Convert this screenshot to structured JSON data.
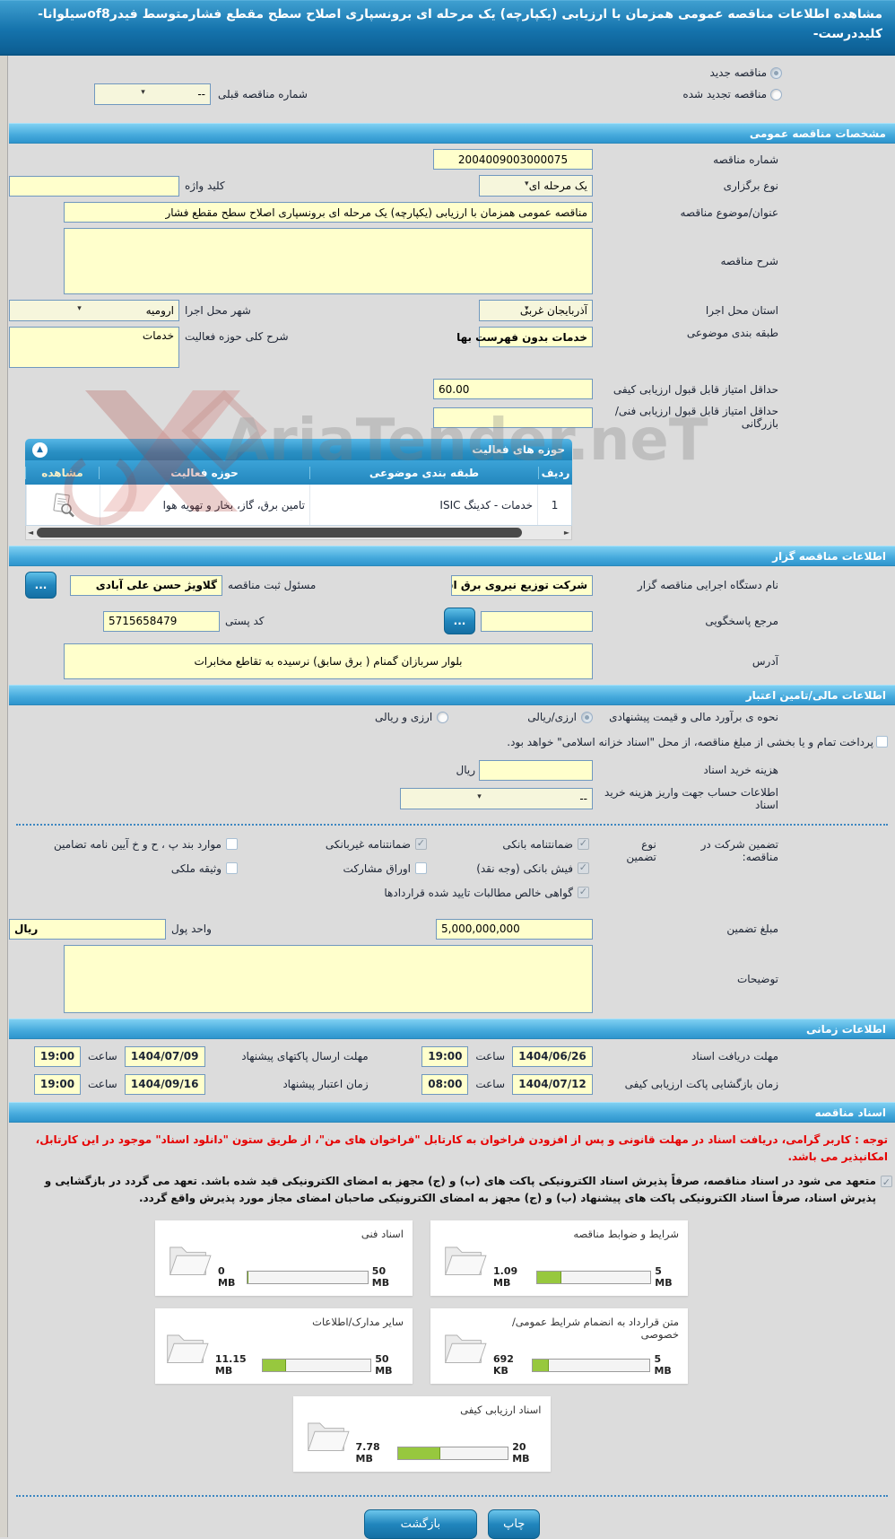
{
  "watermark": {
    "text": "AriaTender.neT"
  },
  "header": {
    "title": "مشاهده اطلاعات مناقصه عمومی همزمان با ارزیابی (یکپارچه) یک مرحله ای برونسپاری اصلاح سطح مقطع فشارمتوسط فیدرof8سیلوانا-کلیددرست-"
  },
  "top": {
    "radio_new": "مناقصه جدید",
    "radio_renewed": "مناقصه تجدید شده",
    "prev_number_label": "شماره مناقصه قبلی",
    "prev_number_value": "--"
  },
  "sections": {
    "general": "مشخصات مناقصه عمومی",
    "tenderer": "اطلاعات مناقصه گزار",
    "financial": "اطلاعات مالی/تامین اعتبار",
    "timing": "اطلاعات زمانی",
    "documents": "اسناد مناقصه"
  },
  "general": {
    "tender_no_label": "شماره مناقصه",
    "tender_no": "2004009003000075",
    "holding_type_label": "نوع برگزاری",
    "holding_type": "یک مرحله ای",
    "keyword_label": "کلید واژه",
    "keyword_value": "",
    "title_label": "عنوان/موضوع مناقصه",
    "title_value": "مناقصه عمومی همزمان با ارزیابی (یکپارچه) یک مرحله ای برونسپاری اصلاح سطح مقطع فشار",
    "desc_label": "شرح مناقصه",
    "desc_value": "",
    "province_label": "استان محل اجرا",
    "province": "آذربایجان غربی",
    "city_label": "شهر محل اجرا",
    "city": "ارومیه",
    "subject_class_label": "طبقه بندی موضوعی",
    "subject_class": "خدمات بدون فهرست بها",
    "activity_desc_label": "شرح کلی حوزه فعالیت",
    "activity_desc": "خدمات",
    "min_quality_label": "حداقل امتیاز قابل قبول ارزیابی کیفی",
    "min_quality": "60.00",
    "min_tech_label": "حداقل امتیاز قابل قبول ارزیابی فنی/بازرگانی",
    "min_tech": ""
  },
  "activity_table": {
    "title": "حوزه های فعالیت",
    "columns": [
      "ردیف",
      "طبقه بندی موضوعی",
      "حوزه فعالیت",
      "مشاهده"
    ],
    "rows": [
      {
        "index": "1",
        "subject": "خدمات - کدینگ ISIC",
        "area": "تامین برق، گاز، بخار و تهویه هوا"
      }
    ]
  },
  "tenderer": {
    "agency_label": "نام دستگاه اجرایی مناقصه گزار",
    "agency": "شرکت توزیع نیروی برق اس",
    "registrar_label": "مسئول ثبت مناقصه",
    "registrar": "گلاویژ حسن علی آبادی",
    "more_button": "...",
    "contact_label": "مرجع پاسخگویی",
    "contact_value": "",
    "postal_label": "کد پستی",
    "postal": "5715658479",
    "address_label": "آدرس",
    "address": "بلوار سربازان گمنام ( برق سابق) نرسیده به تقاطع مخابرات"
  },
  "financial": {
    "estimate_label": "نحوه ی برآورد مالی و قیمت پیشنهادی",
    "option1": "ارزی/ریالی",
    "option2": "ارزی و ریالی",
    "treasury_note": "پرداخت تمام و یا بخشی از مبلغ مناقصه، از محل \"اسناد خزانه اسلامی\" خواهد بود.",
    "doc_cost_label": "هزینه خرید اسناد",
    "doc_cost_value": "",
    "rial": "ریال",
    "account_label": "اطلاعات حساب جهت واریز هزینه خرید اسناد",
    "account_value": "--",
    "guarantee_label": "تضمین شرکت در مناقصه:",
    "guarantee_type_label": "نوع تضمین",
    "guarantee_options": [
      {
        "label": "ضمانتنامه بانکی",
        "checked": true
      },
      {
        "label": "ضمانتنامه غیربانکی",
        "checked": true
      },
      {
        "label": "موارد بند پ ، ح و خ آیین نامه تضامین",
        "checked": false
      },
      {
        "label": "فیش بانکی (وجه نقد)",
        "checked": true
      },
      {
        "label": "اوراق مشارکت",
        "checked": false
      },
      {
        "label": "وثیقه ملکی",
        "checked": false
      },
      {
        "label": "گواهی خالص مطالبات تایید شده قراردادها",
        "checked": true
      }
    ],
    "amount_label": "مبلغ تضمین",
    "amount": "5,000,000,000",
    "currency_label": "واحد پول",
    "currency": "ریال",
    "notes_label": "توضیحات",
    "notes_value": ""
  },
  "timing": {
    "rows": [
      {
        "label": "مهلت دریافت اسناد",
        "date": "1404/06/26",
        "time_label": "ساعت",
        "time": "19:00"
      },
      {
        "label": "مهلت ارسال پاکتهای پیشنهاد",
        "date": "1404/07/09",
        "time_label": "ساعت",
        "time": "19:00"
      },
      {
        "label": "زمان بازگشایی پاکت ارزیابی کیفی",
        "date": "1404/07/12",
        "time_label": "ساعت",
        "time": "08:00"
      },
      {
        "label": "زمان اعتبار پیشنهاد",
        "date": "1404/09/16",
        "time_label": "ساعت",
        "time": "19:00"
      }
    ]
  },
  "documents": {
    "notice_red": "توجه : کاربر گرامی، دریافت اسناد در مهلت قانونی و پس از افزودن فراخوان به کارتابل \"فراخوان های من\"، از طریق ستون \"دانلود اسناد\" موجود در این کارتابل، امکانپذیر می باشد.",
    "commitment": "متعهد می شود در اسناد مناقصه، صرفاً پذیرش اسناد الکترونیکی پاکت های (ب) و (ج) مجهز به امضای الکترونیکی قید شده باشد. تعهد می گردد در بازگشایی و پذیرش اسناد، صرفاً اسناد الکترونیکی پاکت های پیشنهاد (ب) و (ج) مجهز به امضای الکترونیکی صاحبان امضای مجاز مورد پذیرش واقع گردد.",
    "cards": [
      {
        "label": "شرایط و ضوابط مناقصه",
        "used": "1.09 MB",
        "max": "5 MB",
        "pct": 22
      },
      {
        "label": "اسناد فنی",
        "used": "0 MB",
        "max": "50 MB",
        "pct": 0
      },
      {
        "label": "متن قرارداد به انضمام شرایط عمومی/خصوصی",
        "used": "692 KB",
        "max": "5 MB",
        "pct": 14
      },
      {
        "label": "سایر مدارک/اطلاعات",
        "used": "11.15 MB",
        "max": "50 MB",
        "pct": 22
      },
      {
        "label": "اسناد ارزیابی کیفی",
        "used": "7.78 MB",
        "max": "20 MB",
        "pct": 39
      }
    ]
  },
  "footer": {
    "print": "چاپ",
    "back": "بازگشت"
  }
}
